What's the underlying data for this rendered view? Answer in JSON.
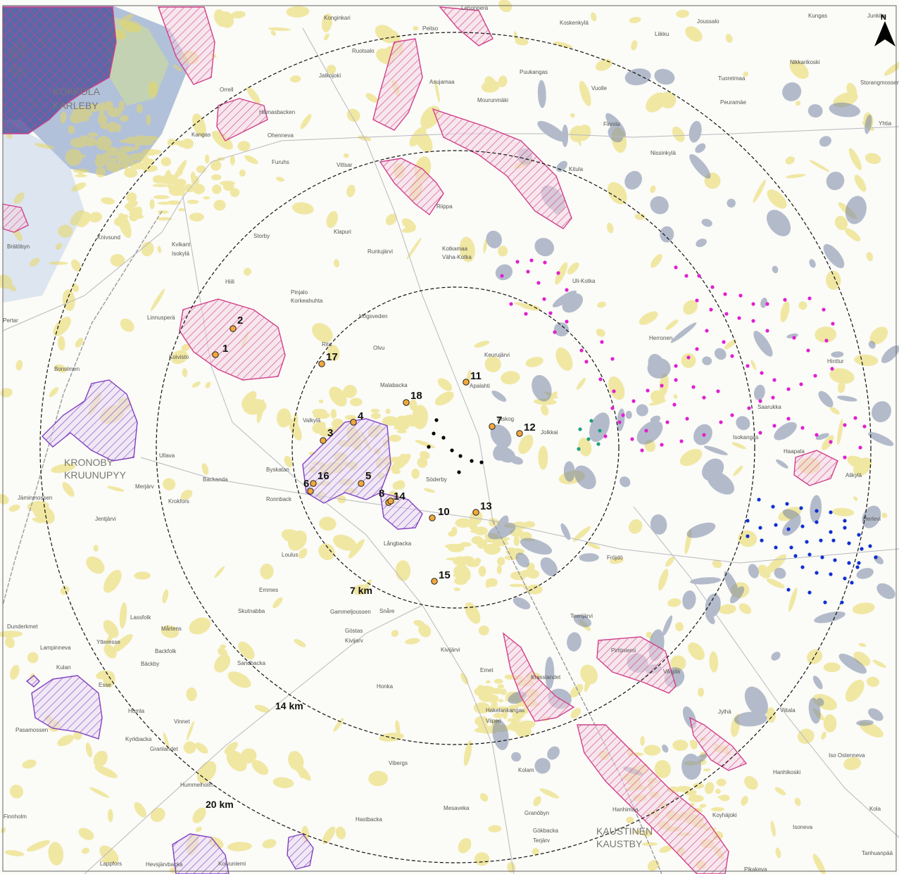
{
  "north_arrow": {
    "label": "N"
  },
  "rings": [
    {
      "label": "7 km"
    },
    {
      "label": "14 km"
    },
    {
      "label": "20 km"
    }
  ],
  "colors": {
    "ring": "#111111",
    "turbine_orange": "#f2a93b",
    "turbine_magenta": "#e020d0",
    "turbine_blue": "#1030d0",
    "turbine_black": "#000000",
    "turbine_green": "#20a080",
    "hatch_pink": "#d0408a",
    "hatch_purple": "#8040c0",
    "yellow_area": "#e8d860",
    "grey_area": "#7888a8"
  },
  "numbered_sites": [
    {
      "label": "1"
    },
    {
      "label": "2"
    },
    {
      "label": "3"
    },
    {
      "label": "4"
    },
    {
      "label": "5"
    },
    {
      "label": "6"
    },
    {
      "label": "7"
    },
    {
      "label": "8"
    },
    {
      "label": "10"
    },
    {
      "label": "11"
    },
    {
      "label": "12"
    },
    {
      "label": "13"
    },
    {
      "label": "14"
    },
    {
      "label": "15"
    },
    {
      "label": "16"
    },
    {
      "label": "17"
    },
    {
      "label": "18"
    }
  ],
  "places": [
    "Konginkari",
    "Peitso",
    "Lehonperä",
    "Koskenkylä",
    "Liikku",
    "Joussalo",
    "Kungas",
    "Junkila",
    "Ruotsalo",
    "Asujamaa",
    "Puukangas",
    "Nikkarikoski",
    "Jatkojoki",
    "Orrell",
    "Tuoretmaa",
    "Hämasbacken",
    "Mourunmäki",
    "Vuolle",
    "Peuramäe",
    "Ohenneva",
    "Finnila",
    "Kangas",
    "Furuhs",
    "Vittsar",
    "Kitula",
    "Nissinkylä",
    "Riippa",
    "Klapuri",
    "Runtujärvi",
    "Kotkamaa",
    "Väha-Kotka",
    "Uli-Kotka",
    "Hiili",
    "Pinjalo",
    "Korkeahuhta",
    "Högsveden",
    "Keurujärvi",
    "Rita",
    "Olvu",
    "Malabacka",
    "Apalahti",
    "Herronen",
    "Valkylä",
    "Aiskog",
    "Jolkkai",
    "Saarukka",
    "Isokangas",
    "Haapala",
    "Alikylä",
    "Herlevi",
    "Ullava",
    "Byskatan",
    "Ronnback",
    "Backanda",
    "Merjärv",
    "Krokfors",
    "Söderby",
    "Långbacka",
    "Loulus",
    "Fröjdö",
    "Emmes",
    "Skutnabba",
    "Gammeljoussen",
    "Snåre",
    "Göstas",
    "Kivijarv",
    "Kivijärvi",
    "Emet",
    "Honka",
    "Krasslandet",
    "Hakelankangas",
    "Viiperi",
    "Vibergs",
    "Kolam",
    "Granöbyn",
    "Mesaveka",
    "Hastbacka",
    "Gökbacka",
    "Terjärv",
    "Teerijärvi",
    "Pirttiniemi",
    "Hanhikoski",
    "Iso Ostenneva",
    "Kola",
    "Koyhäjoki",
    "Tanhuanpää",
    "Lampinneva",
    "Ytteresse",
    "Backfolk",
    "Bäckby",
    "Sandbacka",
    "Kulan",
    "Esse",
    "Kyrkbacka",
    "Humla",
    "Vinnet",
    "Pasamossen",
    "Granlandet",
    "Hummelholm",
    "Finnholm",
    "Pertar",
    "Bonolmen",
    "Brätöbyn",
    "Knivsund",
    "Kvikant",
    "Isokylä",
    "Storby",
    "Linnusperä",
    "Koivisto",
    "Jentjärvi",
    "Jäminmossen",
    "Dunderkmet",
    "Lassfolk",
    "Mårtens",
    "Hevsjärvbacka",
    "Lappfors",
    "Storangmossen",
    "Yhtia",
    "Vilopla",
    "Jylhä",
    "Viitala",
    "Hinttur",
    "Hanhimaa",
    "Isoneva",
    "Pikakeva",
    "Koivuniemi"
  ],
  "big_places": [
    {
      "line1": "KOKKOLA",
      "line2": "KARLEBY"
    },
    {
      "line1": "KRONOBY",
      "line2": "KRUUNUPYY"
    },
    {
      "line1": "KAUSTINEN",
      "line2": "KAUSTBY"
    }
  ]
}
